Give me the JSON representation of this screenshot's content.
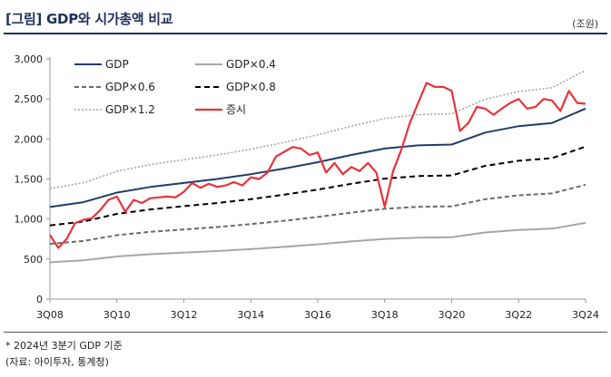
{
  "header": {
    "title": "[그림] GDP와 시가총액 비교",
    "unit": "(조원)"
  },
  "footer": {
    "note": "* 2024년 3분기 GDP 기준",
    "source": "(자료: 아이투자, 통계청)"
  },
  "colors": {
    "gdp": "#1f3d6b",
    "gdp04": "#a6a6a6",
    "gdp06": "#6b6b6b",
    "gdp08": "#000000",
    "gdp12": "#a6a6a6",
    "market": "#e8333a",
    "axis": "#999999"
  },
  "chart_data": {
    "type": "line",
    "xlabel": "",
    "ylabel": "",
    "ylim": [
      0,
      3000
    ],
    "yticks": [
      0,
      500,
      1000,
      1500,
      2000,
      2500,
      3000
    ],
    "ytick_labels": [
      "0",
      "500",
      "1,000",
      "1,500",
      "2,000",
      "2,500",
      "3,000"
    ],
    "xtick_labels": [
      "3Q08",
      "3Q10",
      "3Q12",
      "3Q14",
      "3Q16",
      "3Q18",
      "3Q20",
      "3Q22",
      "3Q24"
    ],
    "grid": false,
    "legend_position": "top-left",
    "legend": [
      "GDP",
      "GDP×0.4",
      "GDP×0.6",
      "GDP×0.8",
      "GDP×1.2",
      "증시"
    ],
    "series": [
      {
        "name": "GDP",
        "key": "gdp",
        "x": [
          "3Q08",
          "3Q09",
          "3Q10",
          "3Q11",
          "3Q12",
          "3Q13",
          "3Q14",
          "3Q15",
          "3Q16",
          "3Q17",
          "3Q18",
          "3Q19",
          "3Q20",
          "3Q21",
          "3Q22",
          "3Q23",
          "3Q24"
        ],
        "values": [
          1150,
          1210,
          1330,
          1400,
          1450,
          1500,
          1560,
          1630,
          1710,
          1800,
          1880,
          1920,
          1930,
          2080,
          2160,
          2200,
          2380
        ]
      },
      {
        "name": "GDP×0.4",
        "key": "gdp04",
        "x": [
          "3Q08",
          "3Q09",
          "3Q10",
          "3Q11",
          "3Q12",
          "3Q13",
          "3Q14",
          "3Q15",
          "3Q16",
          "3Q17",
          "3Q18",
          "3Q19",
          "3Q20",
          "3Q21",
          "3Q22",
          "3Q23",
          "3Q24"
        ],
        "values": [
          460,
          484,
          532,
          560,
          580,
          600,
          624,
          652,
          684,
          720,
          752,
          768,
          772,
          832,
          864,
          880,
          952
        ]
      },
      {
        "name": "GDP×0.6",
        "key": "gdp06",
        "x": [
          "3Q08",
          "3Q09",
          "3Q10",
          "3Q11",
          "3Q12",
          "3Q13",
          "3Q14",
          "3Q15",
          "3Q16",
          "3Q17",
          "3Q18",
          "3Q19",
          "3Q20",
          "3Q21",
          "3Q22",
          "3Q23",
          "3Q24"
        ],
        "values": [
          690,
          726,
          798,
          840,
          870,
          900,
          936,
          978,
          1026,
          1080,
          1128,
          1152,
          1158,
          1248,
          1296,
          1320,
          1428
        ]
      },
      {
        "name": "GDP×0.8",
        "key": "gdp08",
        "x": [
          "3Q08",
          "3Q09",
          "3Q10",
          "3Q11",
          "3Q12",
          "3Q13",
          "3Q14",
          "3Q15",
          "3Q16",
          "3Q17",
          "3Q18",
          "3Q19",
          "3Q20",
          "3Q21",
          "3Q22",
          "3Q23",
          "3Q24"
        ],
        "values": [
          920,
          968,
          1064,
          1120,
          1160,
          1200,
          1248,
          1304,
          1368,
          1440,
          1504,
          1536,
          1544,
          1664,
          1728,
          1760,
          1904
        ]
      },
      {
        "name": "GDP×1.2",
        "key": "gdp12",
        "x": [
          "3Q08",
          "3Q09",
          "3Q10",
          "3Q11",
          "3Q12",
          "3Q13",
          "3Q14",
          "3Q15",
          "3Q16",
          "3Q17",
          "3Q18",
          "3Q19",
          "3Q20",
          "3Q21",
          "3Q22",
          "3Q23",
          "3Q24"
        ],
        "values": [
          1380,
          1452,
          1596,
          1680,
          1740,
          1800,
          1872,
          1956,
          2052,
          2160,
          2256,
          2304,
          2316,
          2496,
          2592,
          2640,
          2856
        ]
      },
      {
        "name": "증시",
        "key": "market",
        "x": [
          "3Q08",
          "4Q08",
          "1Q09",
          "2Q09",
          "3Q09",
          "4Q09",
          "1Q10",
          "2Q10",
          "3Q10",
          "4Q10",
          "1Q11",
          "2Q11",
          "3Q11",
          "4Q11",
          "1Q12",
          "2Q12",
          "3Q12",
          "4Q12",
          "1Q13",
          "2Q13",
          "3Q13",
          "4Q13",
          "1Q14",
          "2Q14",
          "3Q14",
          "4Q14",
          "1Q15",
          "2Q15",
          "3Q15",
          "4Q15",
          "1Q16",
          "2Q16",
          "3Q16",
          "4Q16",
          "1Q17",
          "2Q17",
          "3Q17",
          "4Q17",
          "1Q18",
          "2Q18",
          "3Q18",
          "4Q18",
          "1Q19",
          "2Q19",
          "3Q19",
          "4Q19",
          "1Q20",
          "2Q20",
          "3Q20",
          "4Q20",
          "1Q21",
          "2Q21",
          "3Q21",
          "4Q21",
          "1Q22",
          "2Q22",
          "3Q22",
          "4Q22",
          "1Q23",
          "2Q23",
          "3Q23",
          "4Q23",
          "1Q24",
          "2Q24",
          "3Q24"
        ],
        "values": [
          800,
          640,
          750,
          950,
          990,
          1010,
          1110,
          1240,
          1280,
          1090,
          1240,
          1200,
          1260,
          1270,
          1280,
          1270,
          1340,
          1450,
          1390,
          1440,
          1400,
          1420,
          1460,
          1420,
          1520,
          1500,
          1580,
          1780,
          1840,
          1900,
          1880,
          1800,
          1830,
          1580,
          1700,
          1560,
          1650,
          1600,
          1700,
          1580,
          1150,
          1600,
          1870,
          2200,
          2450,
          2700,
          2650,
          2650,
          2600,
          2100,
          2200,
          2400,
          2380,
          2300,
          2380,
          2450,
          2500,
          2380,
          2400,
          2500,
          2480,
          2350,
          2600,
          2450,
          2440
        ]
      }
    ]
  }
}
